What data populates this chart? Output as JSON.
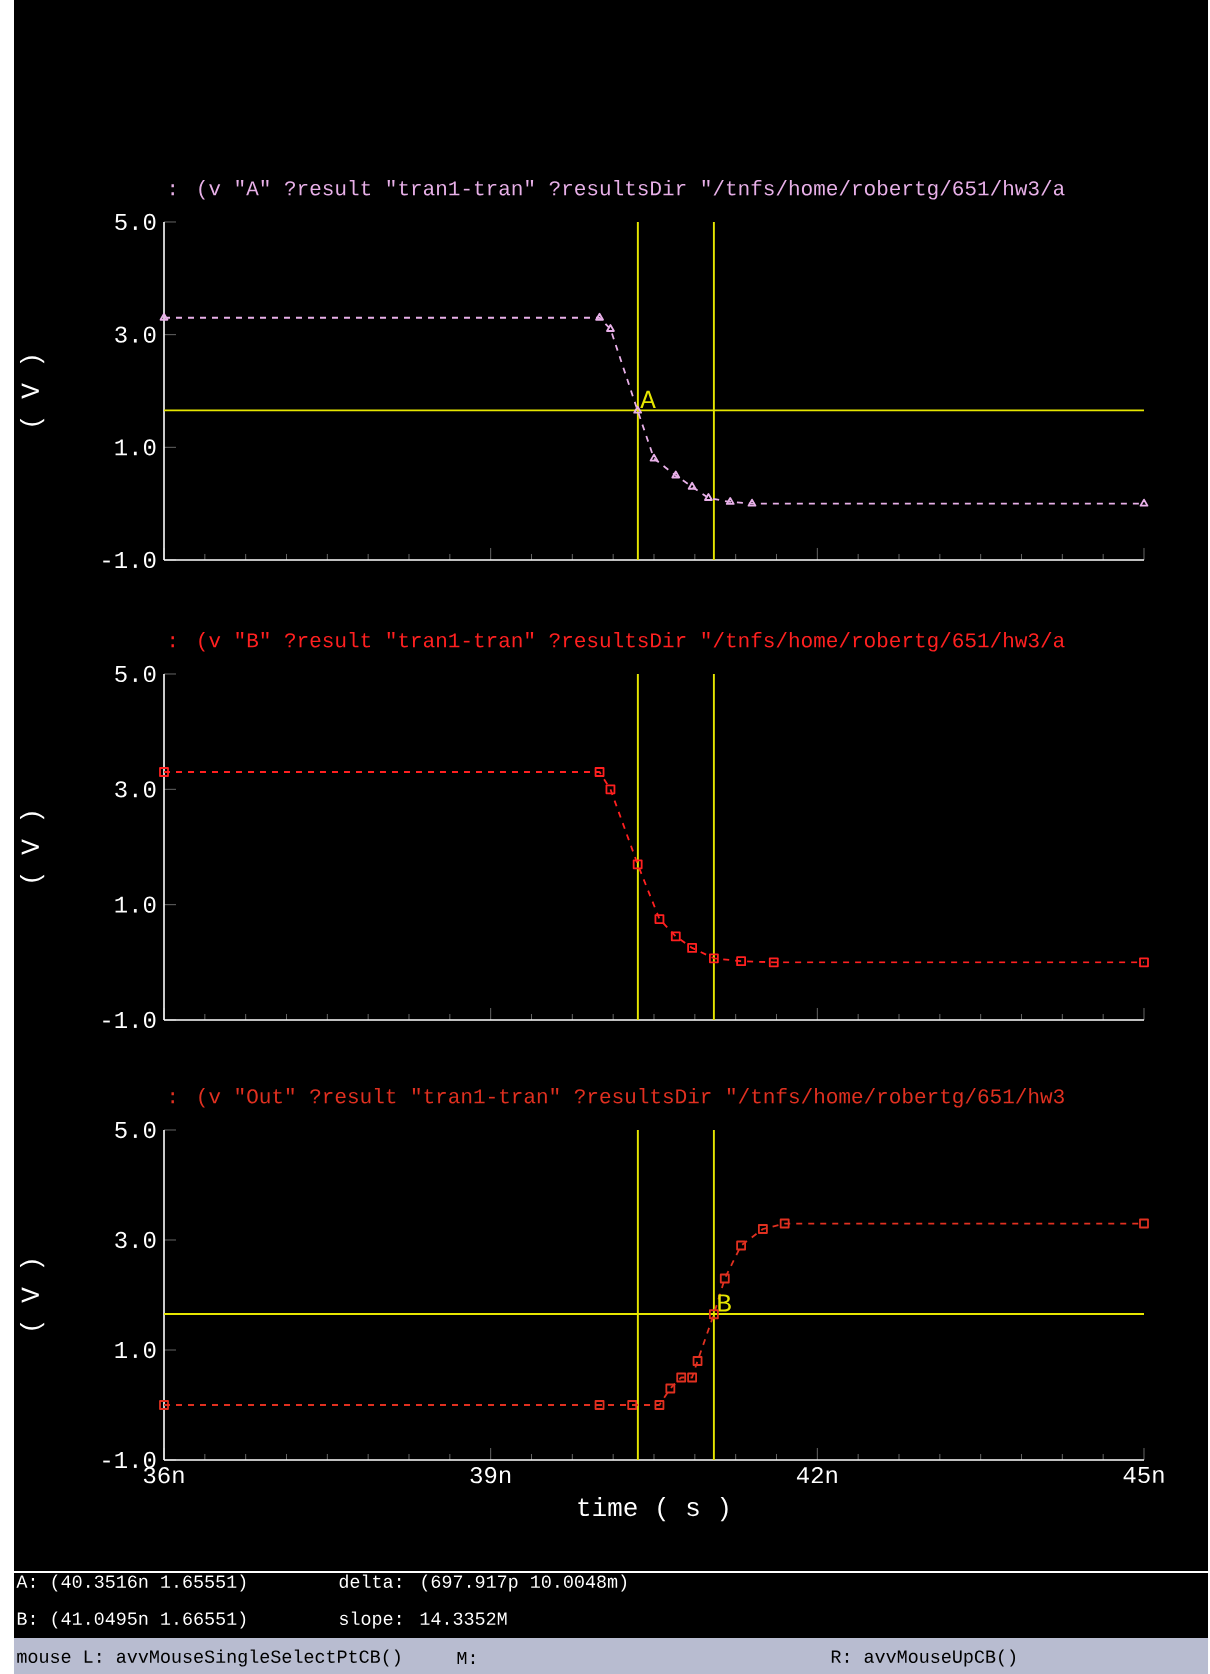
{
  "chart_data": [
    {
      "type": "line",
      "title": ": (v \"A\" ?result \"tran1-tran\" ?resultsDir \"/tnfs/home/robertg/651/hw3/a",
      "ylabel": "( V )",
      "x": [
        36,
        40.0,
        40.1,
        40.35,
        40.5,
        40.7,
        40.85,
        41.0,
        41.2,
        41.4,
        45
      ],
      "series": [
        {
          "color": "#e8b0e8",
          "marker": "triangle",
          "line_style": "dashed",
          "values": [
            3.3,
            3.3,
            3.1,
            1.65,
            0.8,
            0.5,
            0.3,
            0.1,
            0.03,
            0,
            0
          ]
        }
      ],
      "xlim": [
        36,
        45
      ],
      "xticks": [
        {
          "value": 36,
          "label": null
        },
        {
          "value": 39,
          "label": null
        },
        {
          "value": 42,
          "label": null
        },
        {
          "value": 45,
          "label": null
        }
      ],
      "ylim": [
        -1,
        5
      ],
      "yticks": [
        {
          "value": -1,
          "label": "-1.0"
        },
        {
          "value": 1,
          "label": "1.0"
        },
        {
          "value": 3,
          "label": "3.0"
        },
        {
          "value": 5,
          "label": "5.0"
        }
      ],
      "tick_labels": "y",
      "ref_lines": [
        {
          "axis": "x",
          "value": 40.3516,
          "color": "#e6e600"
        },
        {
          "axis": "x",
          "value": 41.0495,
          "color": "#e6e600"
        },
        {
          "axis": "y",
          "value": 1.65551,
          "color": "#e6e600"
        }
      ],
      "annotations": [
        {
          "text": "A",
          "x": 40.3516,
          "y": 1.65551
        }
      ]
    },
    {
      "type": "line",
      "title": ": (v \"B\" ?result \"tran1-tran\" ?resultsDir \"/tnfs/home/robertg/651/hw3/a",
      "ylabel": "( V )",
      "x": [
        36,
        40.0,
        40.1,
        40.35,
        40.55,
        40.7,
        40.85,
        41.05,
        41.3,
        41.6,
        45
      ],
      "series": [
        {
          "color": "#ff2020",
          "marker": "square",
          "line_style": "dashed",
          "values": [
            3.3,
            3.3,
            3.0,
            1.7,
            0.75,
            0.45,
            0.25,
            0.07,
            0.02,
            0,
            0
          ]
        }
      ],
      "xlim": [
        36,
        45
      ],
      "xticks": [
        {
          "value": 36,
          "label": null
        },
        {
          "value": 39,
          "label": null
        },
        {
          "value": 42,
          "label": null
        },
        {
          "value": 45,
          "label": null
        }
      ],
      "ylim": [
        -1,
        5
      ],
      "yticks": [
        {
          "value": -1,
          "label": "-1.0"
        },
        {
          "value": 1,
          "label": "1.0"
        },
        {
          "value": 3,
          "label": "3.0"
        },
        {
          "value": 5,
          "label": "5.0"
        }
      ],
      "tick_labels": "y",
      "ref_lines": [
        {
          "axis": "x",
          "value": 40.3516,
          "color": "#e6e600"
        },
        {
          "axis": "x",
          "value": 41.0495,
          "color": "#e6e600"
        }
      ]
    },
    {
      "type": "line",
      "title": ": (v \"Out\" ?result \"tran1-tran\" ?resultsDir \"/tnfs/home/robertg/651/hw3",
      "ylabel": "( V )",
      "xlabel": "time ( s )",
      "x": [
        36,
        40.0,
        40.3,
        40.55,
        40.65,
        40.75,
        40.85,
        40.9,
        41.05,
        41.15,
        41.3,
        41.5,
        41.7,
        45
      ],
      "series": [
        {
          "color": "#e03020",
          "marker": "square",
          "line_style": "dashed",
          "values": [
            0,
            0,
            0,
            0,
            0.3,
            0.5,
            0.5,
            0.8,
            1.65,
            2.3,
            2.9,
            3.2,
            3.3,
            3.3
          ]
        }
      ],
      "xlim": [
        36,
        45
      ],
      "xticks": [
        {
          "value": 36,
          "label": "36n"
        },
        {
          "value": 39,
          "label": "39n"
        },
        {
          "value": 42,
          "label": "42n"
        },
        {
          "value": 45,
          "label": "45n"
        }
      ],
      "ylim": [
        -1,
        5
      ],
      "yticks": [
        {
          "value": -1,
          "label": "-1.0"
        },
        {
          "value": 1,
          "label": "1.0"
        },
        {
          "value": 3,
          "label": "3.0"
        },
        {
          "value": 5,
          "label": "5.0"
        }
      ],
      "ref_lines": [
        {
          "axis": "x",
          "value": 40.3516,
          "color": "#e6e600"
        },
        {
          "axis": "x",
          "value": 41.0495,
          "color": "#e6e600"
        },
        {
          "axis": "y",
          "value": 1.65551,
          "color": "#e6e600"
        }
      ],
      "annotations": [
        {
          "text": "B",
          "x": 41.0495,
          "y": 1.65551
        },
        "A: (40.3516n 1.65551)",
        "B: (41.0495n 1.66551)",
        "delta: (697.917p 10.0048m)",
        "slope: 14.3352M",
        "mouse L: avvMouseSingleSelectPtCB()",
        "M:",
        "R: avvMouseUpCB()"
      ]
    }
  ]
}
